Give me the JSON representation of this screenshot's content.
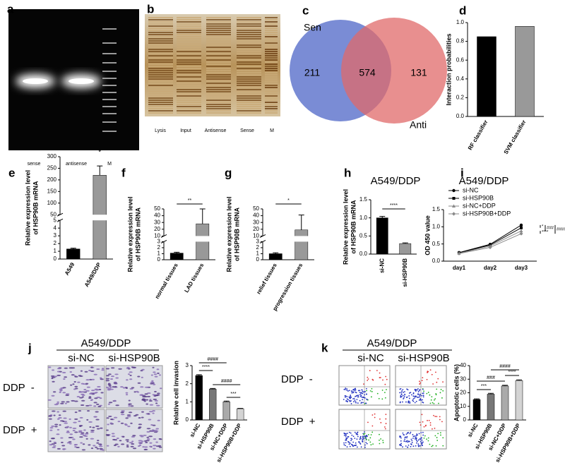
{
  "panel_labels": [
    "a",
    "b",
    "c",
    "d",
    "e",
    "f",
    "g",
    "h",
    "i",
    "j",
    "k"
  ],
  "gel_a": {
    "lanes": [
      "sense",
      "antisense",
      "M"
    ]
  },
  "gel_b": {
    "lanes": [
      "Lysis",
      "Input",
      "Antisense",
      "Sense",
      "M"
    ]
  },
  "venn": {
    "left_label": "Sen",
    "right_label": "Anti",
    "left_only": 211,
    "both": 574,
    "right_only": 131
  },
  "micrograph_j": {
    "title": "A549/DDP",
    "columns": [
      "si-NC",
      "si-HSP90B"
    ],
    "rows": [
      "DDP  -",
      "DDP  +"
    ]
  },
  "flow_k": {
    "title": "A549/DDP",
    "columns": [
      "si-NC",
      "si-HSP90B"
    ],
    "rows": [
      "DDP  -",
      "DDP  +"
    ]
  },
  "chart_data": [
    {
      "type": "bar",
      "categories": [
        "RF classifier",
        "SVM classifier"
      ],
      "values": [
        0.85,
        0.96
      ],
      "colors": [
        "#000000",
        "#999999"
      ],
      "ylabel": [
        "Interaction probabilities"
      ],
      "ylim": [
        0,
        1
      ],
      "yticks": [
        {
          "value": 0,
          "label": "0.0"
        },
        0.2,
        0.4,
        0.6,
        0.8,
        {
          "value": 1,
          "label": "1.0"
        }
      ]
    },
    {
      "type": "bar",
      "categories": [
        "A549",
        "A549/DDP"
      ],
      "values": [
        1.3,
        220
      ],
      "errors": [
        0.1,
        40
      ],
      "colors": [
        "#000000",
        "#999999"
      ],
      "ylabel": [
        "Relative expression level",
        "of HSP90B mRNA"
      ],
      "ylim": [
        0,
        300
      ],
      "axis_break": [
        5,
        50
      ],
      "yticks": [
        0,
        1,
        2,
        3,
        4,
        5,
        50,
        100,
        150,
        200,
        250,
        300
      ],
      "annotations": [
        "*"
      ]
    },
    {
      "type": "bar",
      "categories": [
        "normal tissues",
        "LAD tissues"
      ],
      "values": [
        1.1,
        28
      ],
      "errors": [
        0.15,
        22
      ],
      "colors": [
        "#000000",
        "#999999"
      ],
      "ylabel": [
        "Relative expression level",
        "of HSP90B mRNA"
      ],
      "ylim": [
        0,
        50
      ],
      "axis_break": [
        3,
        10
      ],
      "yticks": [
        0,
        1,
        2,
        3,
        10,
        20,
        30,
        40,
        50
      ],
      "annotations": [
        "**"
      ]
    },
    {
      "type": "bar",
      "categories": [
        "relief tissues",
        "progression tissues"
      ],
      "values": [
        1.0,
        19
      ],
      "errors": [
        0.15,
        22
      ],
      "colors": [
        "#000000",
        "#999999"
      ],
      "ylabel": [
        "Relative expression level",
        "of HSP90B mRNA"
      ],
      "ylim": [
        0,
        50
      ],
      "axis_break": [
        3,
        10
      ],
      "yticks": [
        0,
        1,
        2,
        3,
        10,
        20,
        30,
        40,
        50
      ],
      "annotations": [
        "*"
      ]
    },
    {
      "type": "bar",
      "title": "A549/DDP",
      "categories": [
        "si-NC",
        "si-HSP90B"
      ],
      "values": [
        1.0,
        0.29
      ],
      "errors": [
        0.04,
        0.02
      ],
      "colors": [
        "#000000",
        "#999999"
      ],
      "ylabel": [
        "Relative expression level",
        "of HSP90B mRNA"
      ],
      "ylim": [
        0,
        1.5
      ],
      "yticks": [
        {
          "value": 0,
          "label": "0.0"
        },
        0.5,
        {
          "value": 1,
          "label": "1.0"
        },
        1.5
      ],
      "annotations": [
        "****"
      ]
    },
    {
      "type": "line",
      "title": "A549/DDP",
      "categories": [
        "day1",
        "day2",
        "day3"
      ],
      "ylabel": [
        "OD 450 value"
      ],
      "ylim": [
        0,
        1.5
      ],
      "yticks": [
        {
          "value": 0,
          "label": "0.0"
        },
        0.5,
        {
          "value": 1,
          "label": "1.0"
        },
        1.5
      ],
      "series": [
        {
          "name": "si-NC",
          "color": "#000000",
          "marker": "circle",
          "values": [
            0.25,
            0.49,
            1.05
          ]
        },
        {
          "name": "si-HSP90B",
          "color": "#000000",
          "marker": "square",
          "values": [
            0.24,
            0.47,
            0.97
          ]
        },
        {
          "name": "si-NC+DDP",
          "color": "#888888",
          "marker": "triangle",
          "values": [
            0.23,
            0.44,
            0.88
          ]
        },
        {
          "name": "si-HSP90B+DDP",
          "color": "#888888",
          "marker": "diamond",
          "values": [
            0.22,
            0.4,
            0.8
          ]
        }
      ],
      "annotations": [
        "*",
        "###",
        "####",
        "****"
      ]
    },
    {
      "type": "bar",
      "categories": [
        "si-NC",
        "si-HSP90B",
        "si-NC+DDP",
        "si-HSP90B+DDP"
      ],
      "values": [
        2.45,
        1.7,
        1.0,
        0.62
      ],
      "errors": [
        0.05,
        0.04,
        0.04,
        0.02
      ],
      "colors": [
        "#000000",
        "#777777",
        "#aaaaaa",
        "#d4d4d4"
      ],
      "ylabel": [
        "Relative cell invasion"
      ],
      "ylim": [
        0,
        3
      ],
      "yticks": [
        0,
        1,
        2,
        3
      ],
      "annotations": [
        "****",
        "####",
        "####",
        "***"
      ]
    },
    {
      "type": "bar",
      "categories": [
        "si-NC",
        "si-HSP90B",
        "si-NC+DDP",
        "si-HSP90B+DDP"
      ],
      "values": [
        15,
        19,
        25,
        29
      ],
      "errors": [
        0.5,
        0.6,
        0.5,
        0.5
      ],
      "colors": [
        "#000000",
        "#777777",
        "#aaaaaa",
        "#d4d4d4"
      ],
      "ylabel": [
        "Apoptotic cells (%)"
      ],
      "ylim": [
        0,
        40
      ],
      "yticks": [
        0,
        10,
        20,
        30,
        40
      ],
      "annotations": [
        "***",
        "###",
        "####",
        "****"
      ]
    }
  ]
}
